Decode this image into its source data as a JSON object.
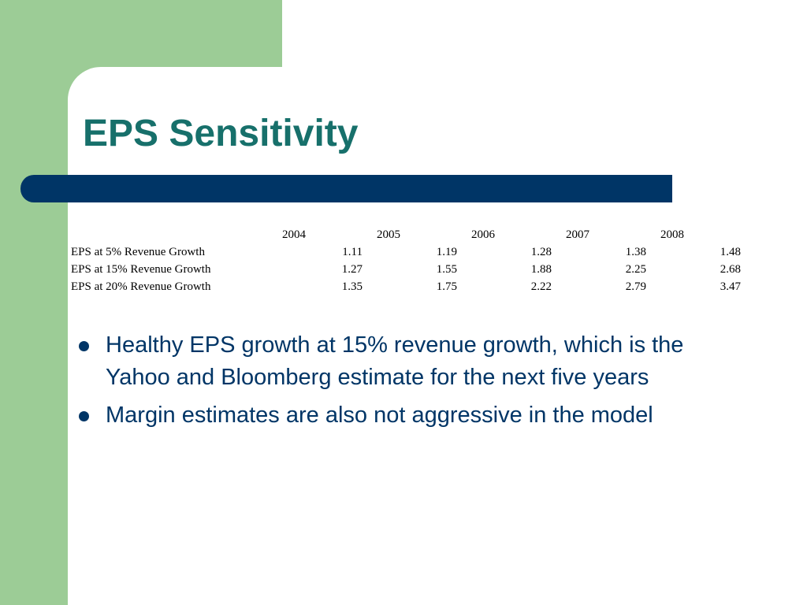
{
  "slide": {
    "title": "EPS Sensitivity",
    "colors": {
      "side_green": "#9ccc96",
      "title_teal": "#17706b",
      "accent_navy": "#003566",
      "text_navy": "#003566"
    }
  },
  "table": {
    "columns": [
      "2004",
      "2005",
      "2006",
      "2007",
      "2008"
    ],
    "rows": [
      {
        "label": "EPS at 5% Revenue Growth",
        "values": [
          "1.11",
          "1.19",
          "1.28",
          "1.38",
          "1.48"
        ]
      },
      {
        "label": "EPS at 15% Revenue Growth",
        "values": [
          "1.27",
          "1.55",
          "1.88",
          "2.25",
          "2.68"
        ]
      },
      {
        "label": "EPS at 20% Revenue Growth",
        "values": [
          "1.35",
          "1.75",
          "2.22",
          "2.79",
          "3.47"
        ]
      }
    ]
  },
  "bullets": [
    {
      "text": "Healthy EPS growth at 15% revenue growth, which is the Yahoo and Bloomberg estimate for the next five years",
      "icon": "bullet-dot-icon"
    },
    {
      "text": "Margin estimates are also not aggressive in the model",
      "icon": "bullet-dot-icon"
    }
  ]
}
